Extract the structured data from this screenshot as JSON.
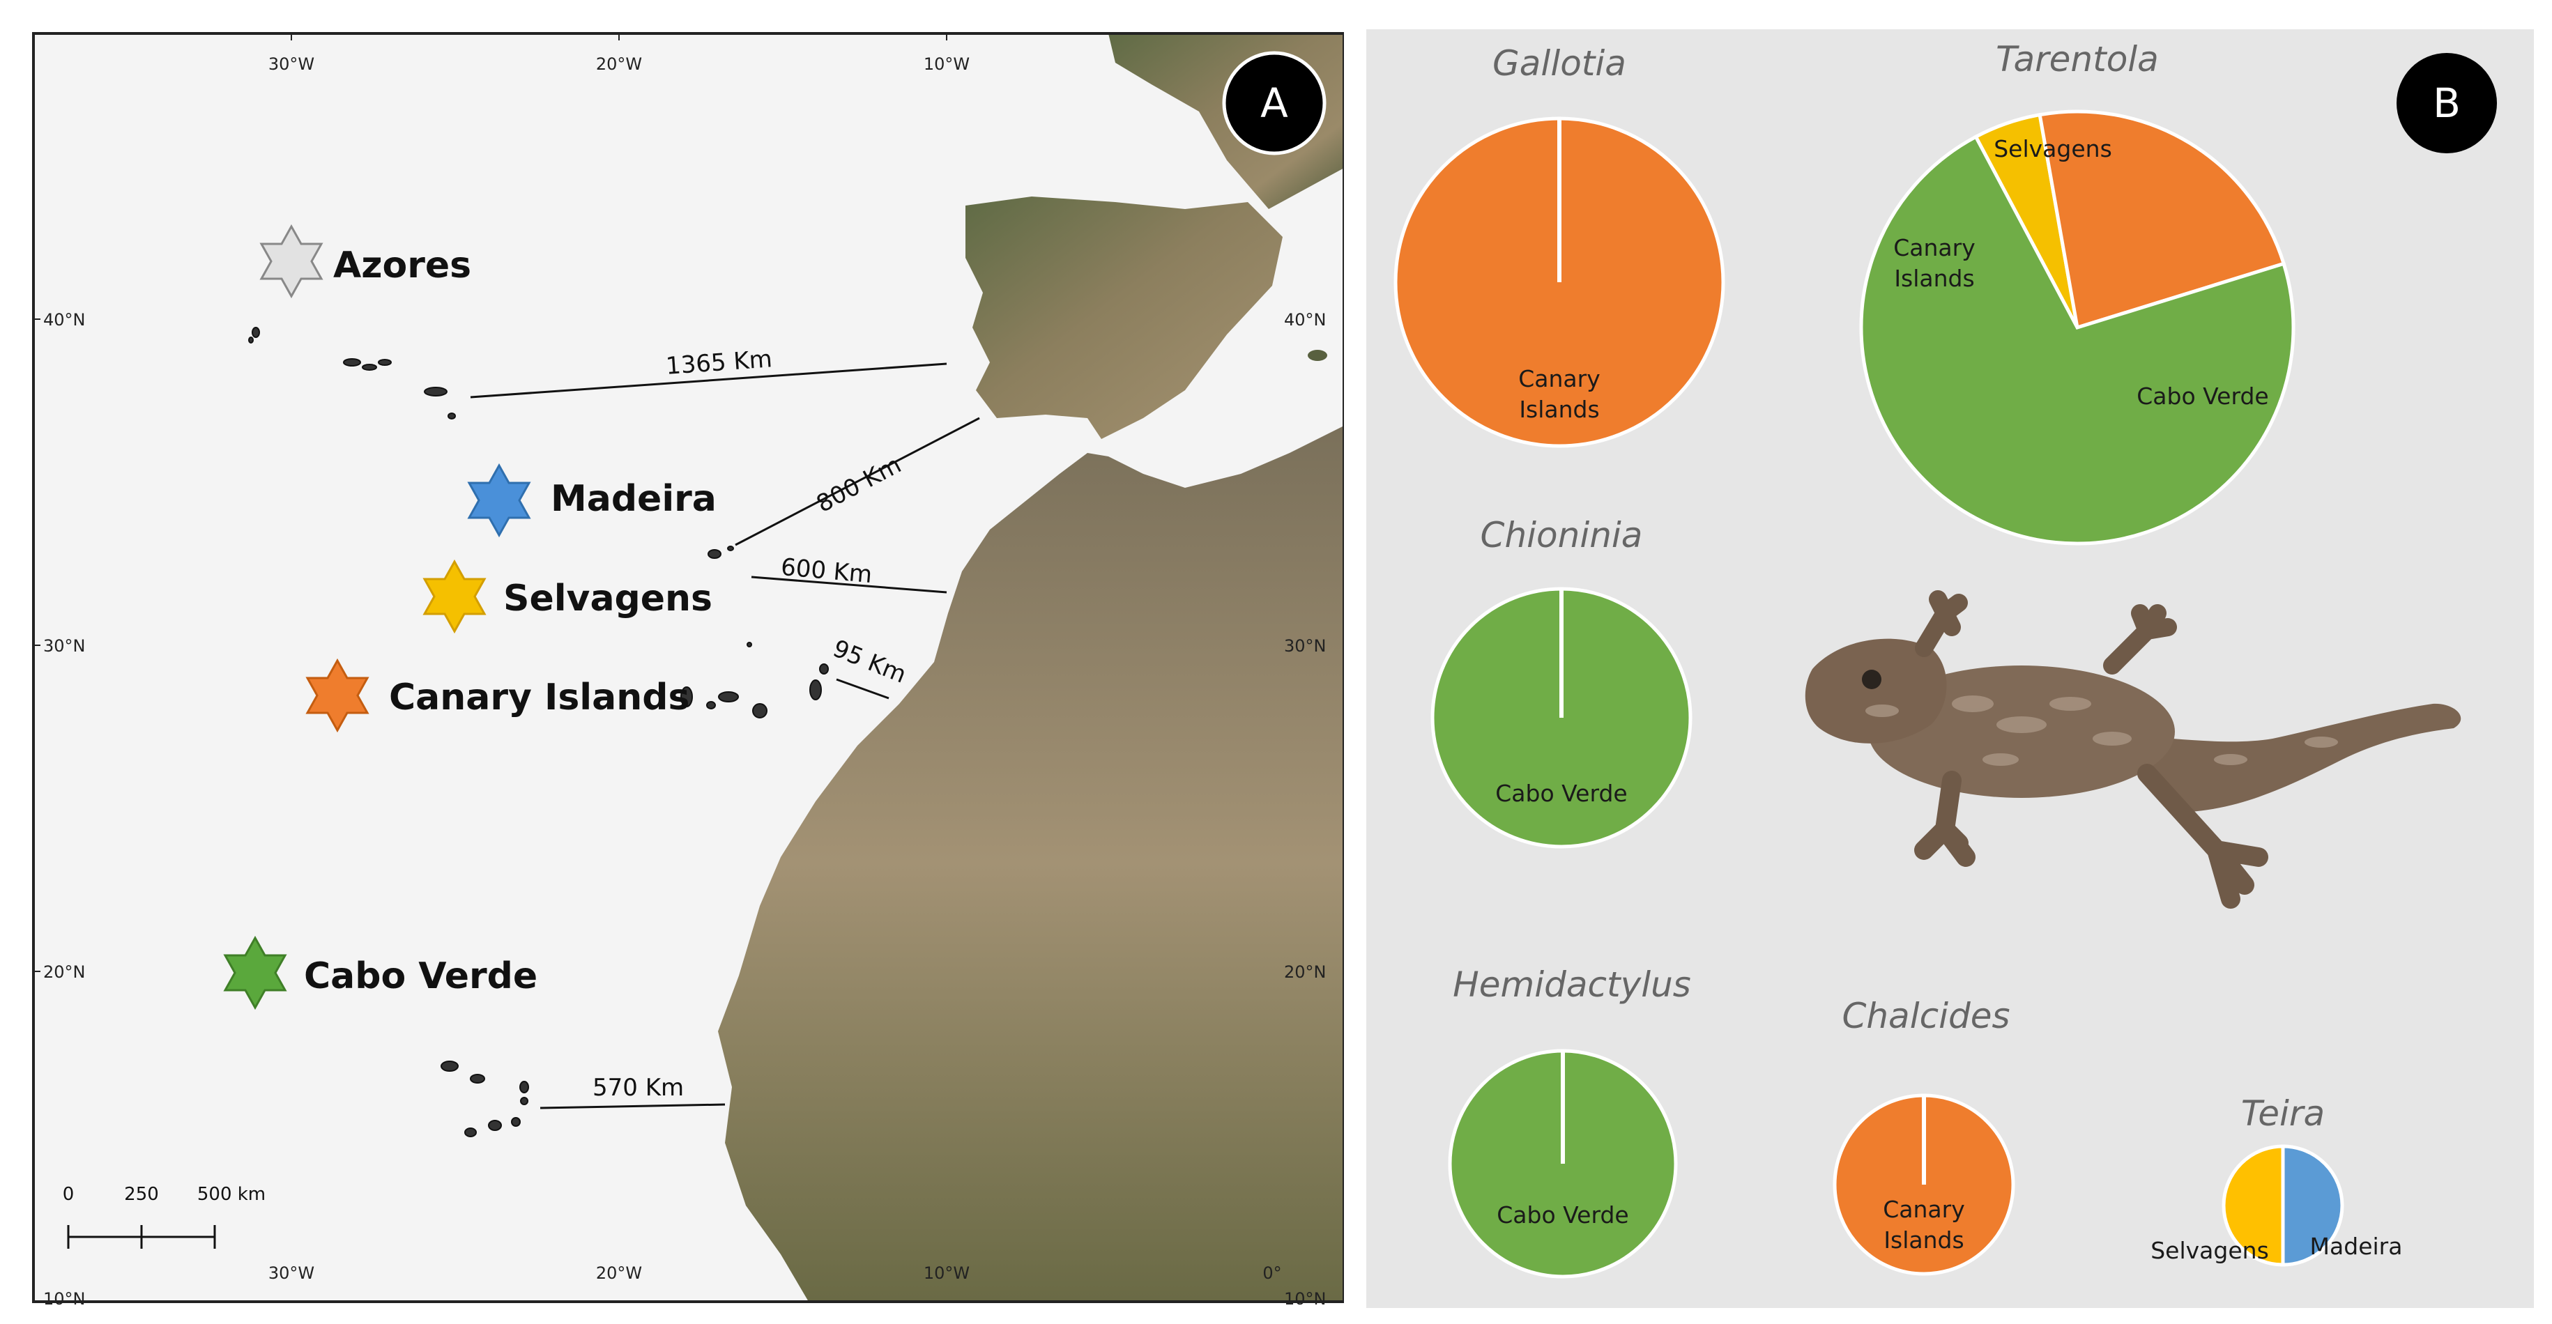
{
  "panel_a": {
    "badge": "A",
    "lon_labels": [
      "30°W",
      "20°W",
      "10°W",
      "0°"
    ],
    "lat_labels": [
      "40°N",
      "30°N",
      "20°N",
      "10°N"
    ],
    "archipelagos": [
      {
        "name": "Azores",
        "star": "six-point-star-icon",
        "color": "#e2e2e2"
      },
      {
        "name": "Madeira",
        "star": "six-point-star-icon",
        "color": "#4a90d9"
      },
      {
        "name": "Selvagens",
        "star": "six-point-star-icon",
        "color": "#f5c000"
      },
      {
        "name": "Canary Islands",
        "star": "six-point-star-icon",
        "color": "#ef7d2d"
      },
      {
        "name": "Cabo Verde",
        "star": "six-point-star-icon",
        "color": "#5aa83c"
      }
    ],
    "distances": [
      "1365 Km",
      "800 Km",
      "600 Km",
      "95 Km",
      "570 Km"
    ],
    "scale_bar": [
      "0",
      "250",
      "500 km"
    ],
    "colors": {
      "ocean": "#f4f4f4",
      "land": "#6b6a4d",
      "frame": "#222222"
    }
  },
  "panel_b": {
    "badge": "B",
    "background": "#e6e6e6",
    "photo": "gecko-photo"
  },
  "chart_data": [
    {
      "type": "pie",
      "title": "Gallotia",
      "series": [
        {
          "labels": [
            "Canary Islands"
          ],
          "values": [
            100
          ],
          "colors": [
            "#ef7d2d"
          ]
        }
      ]
    },
    {
      "type": "pie",
      "title": "Tarentola",
      "series": [
        {
          "labels": [
            "Selvagens",
            "Canary Islands",
            "Cabo Verde"
          ],
          "values": [
            5,
            23,
            72
          ],
          "colors": [
            "#f5c000",
            "#ef7d2d",
            "#70ad47"
          ]
        }
      ]
    },
    {
      "type": "pie",
      "title": "Chioninia",
      "series": [
        {
          "labels": [
            "Cabo Verde"
          ],
          "values": [
            100
          ],
          "colors": [
            "#70ad47"
          ]
        }
      ]
    },
    {
      "type": "pie",
      "title": "Hemidactylus",
      "series": [
        {
          "labels": [
            "Cabo Verde"
          ],
          "values": [
            100
          ],
          "colors": [
            "#70ad47"
          ]
        }
      ]
    },
    {
      "type": "pie",
      "title": "Chalcides",
      "series": [
        {
          "labels": [
            "Canary Islands"
          ],
          "values": [
            100
          ],
          "colors": [
            "#ef7d2d"
          ]
        }
      ]
    },
    {
      "type": "pie",
      "title": "Teira",
      "series": [
        {
          "labels": [
            "Madeira",
            "Selvagens"
          ],
          "values": [
            50,
            50
          ],
          "colors": [
            "#5b9bd5",
            "#ffc000"
          ]
        }
      ]
    }
  ]
}
